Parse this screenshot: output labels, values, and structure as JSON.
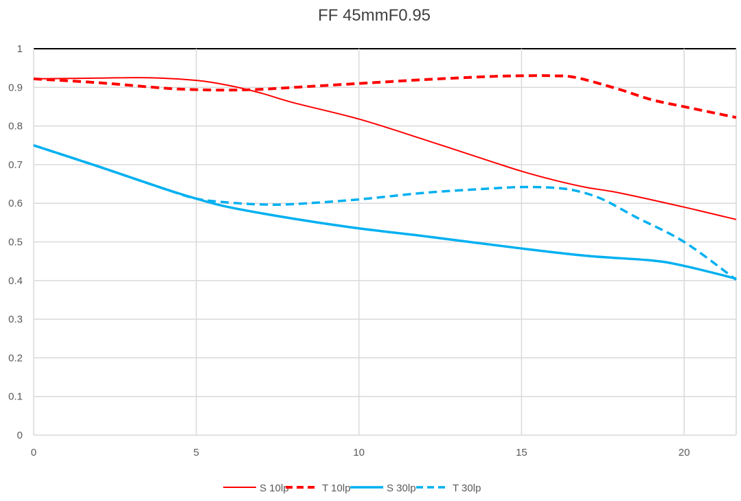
{
  "chart_data": {
    "type": "line",
    "title": "FF 45mmF0.95",
    "xlabel": "",
    "ylabel": "",
    "xlim": [
      0,
      21.6
    ],
    "ylim": [
      0,
      1
    ],
    "x_ticks": [
      "0",
      "5",
      "10",
      "15",
      "20"
    ],
    "y_ticks": [
      "0",
      "0.1",
      "0.2",
      "0.3",
      "0.4",
      "0.5",
      "0.6",
      "0.7",
      "0.8",
      "0.9",
      "1"
    ],
    "grid": true,
    "legend_position": "bottom",
    "series": [
      {
        "name": "S 10lp",
        "color": "#ff0000",
        "dash": false,
        "points": [
          [
            0,
            0.922
          ],
          [
            2,
            0.924
          ],
          [
            3.5,
            0.925
          ],
          [
            5,
            0.918
          ],
          [
            6,
            0.905
          ],
          [
            7,
            0.885
          ],
          [
            8,
            0.86
          ],
          [
            10,
            0.818
          ],
          [
            12,
            0.765
          ],
          [
            14,
            0.71
          ],
          [
            15,
            0.683
          ],
          [
            16,
            0.66
          ],
          [
            17,
            0.641
          ],
          [
            18,
            0.627
          ],
          [
            20,
            0.59
          ],
          [
            21.6,
            0.558
          ]
        ]
      },
      {
        "name": "T 10lp",
        "color": "#ff0000",
        "dash": true,
        "points": [
          [
            0,
            0.922
          ],
          [
            2,
            0.912
          ],
          [
            4,
            0.898
          ],
          [
            5,
            0.894
          ],
          [
            6,
            0.893
          ],
          [
            7,
            0.895
          ],
          [
            8,
            0.9
          ],
          [
            10,
            0.91
          ],
          [
            12,
            0.92
          ],
          [
            14,
            0.928
          ],
          [
            15,
            0.93
          ],
          [
            16,
            0.93
          ],
          [
            16.7,
            0.925
          ],
          [
            18,
            0.895
          ],
          [
            19,
            0.868
          ],
          [
            20,
            0.85
          ],
          [
            21.6,
            0.822
          ]
        ]
      },
      {
        "name": "S 30lp",
        "color": "#00b0f0",
        "dash": false,
        "points": [
          [
            0,
            0.75
          ],
          [
            2,
            0.695
          ],
          [
            4,
            0.638
          ],
          [
            5,
            0.612
          ],
          [
            6,
            0.59
          ],
          [
            8,
            0.56
          ],
          [
            10,
            0.535
          ],
          [
            12,
            0.515
          ],
          [
            15,
            0.483
          ],
          [
            17,
            0.464
          ],
          [
            19,
            0.452
          ],
          [
            20,
            0.438
          ],
          [
            21.6,
            0.405
          ]
        ]
      },
      {
        "name": "T 30lp",
        "color": "#00b0f0",
        "dash": true,
        "points": [
          [
            0,
            0.75
          ],
          [
            2,
            0.695
          ],
          [
            4,
            0.638
          ],
          [
            5,
            0.612
          ],
          [
            6,
            0.602
          ],
          [
            7,
            0.597
          ],
          [
            8,
            0.598
          ],
          [
            10,
            0.61
          ],
          [
            12,
            0.627
          ],
          [
            14,
            0.638
          ],
          [
            15,
            0.642
          ],
          [
            16,
            0.64
          ],
          [
            16.7,
            0.632
          ],
          [
            17.5,
            0.61
          ],
          [
            18.5,
            0.565
          ],
          [
            20,
            0.5
          ],
          [
            21.6,
            0.402
          ]
        ]
      }
    ]
  }
}
